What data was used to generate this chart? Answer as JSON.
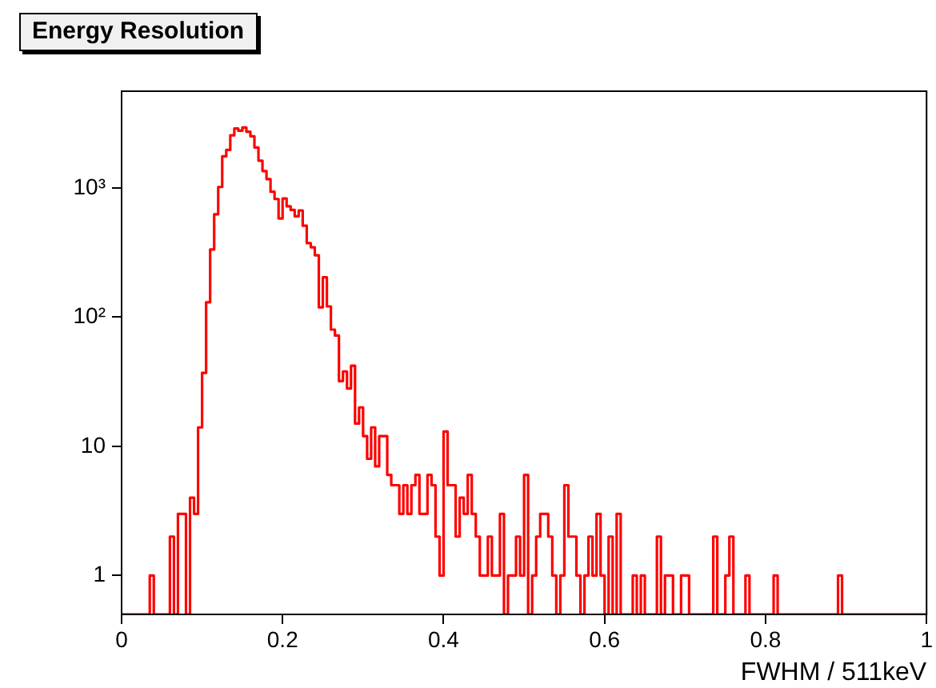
{
  "chart_data": {
    "type": "histogram",
    "title": "Energy Resolution",
    "xlabel": "FWHM / 511keV",
    "color": "#ff0000",
    "bins": [
      0,
      0.005,
      0.01,
      0.015,
      0.02,
      0.025,
      0.03,
      0.035,
      0.04,
      0.045,
      0.05,
      0.055,
      0.06,
      0.065,
      0.07,
      0.075,
      0.08,
      0.085,
      0.09,
      0.095,
      0.1,
      0.105,
      0.11,
      0.115,
      0.12,
      0.125,
      0.13,
      0.135,
      0.14,
      0.145,
      0.15,
      0.155,
      0.16,
      0.165,
      0.17,
      0.175,
      0.18,
      0.185,
      0.19,
      0.195,
      0.2,
      0.205,
      0.21,
      0.215,
      0.22,
      0.225,
      0.23,
      0.235,
      0.24,
      0.245,
      0.25,
      0.255,
      0.26,
      0.265,
      0.27,
      0.275,
      0.28,
      0.285,
      0.29,
      0.295,
      0.3,
      0.305,
      0.31,
      0.315,
      0.32,
      0.325,
      0.33,
      0.335,
      0.34,
      0.345,
      0.35,
      0.355,
      0.36,
      0.365,
      0.37,
      0.375,
      0.38,
      0.385,
      0.39,
      0.395,
      0.4,
      0.405,
      0.41,
      0.415,
      0.42,
      0.425,
      0.43,
      0.435,
      0.44,
      0.445,
      0.45,
      0.455,
      0.46,
      0.465,
      0.47,
      0.475,
      0.48,
      0.485,
      0.49,
      0.495,
      0.5,
      0.505,
      0.51,
      0.515,
      0.52,
      0.525,
      0.53,
      0.535,
      0.54,
      0.545,
      0.55,
      0.555,
      0.56,
      0.565,
      0.57,
      0.575,
      0.58,
      0.585,
      0.59,
      0.595,
      0.6,
      0.605,
      0.61,
      0.615,
      0.62,
      0.625,
      0.63,
      0.635,
      0.64,
      0.645,
      0.65,
      0.655,
      0.66,
      0.665,
      0.67,
      0.675,
      0.68,
      0.685,
      0.69,
      0.695,
      0.7,
      0.705,
      0.71,
      0.715,
      0.72,
      0.725,
      0.73,
      0.735,
      0.74,
      0.745,
      0.75,
      0.755,
      0.76,
      0.765,
      0.77,
      0.775,
      0.78,
      0.785,
      0.79,
      0.795,
      0.8,
      0.805,
      0.81,
      0.815,
      0.82,
      0.825,
      0.83,
      0.835,
      0.84,
      0.845,
      0.85,
      0.855,
      0.86,
      0.865,
      0.87,
      0.875,
      0.88,
      0.885,
      0.89,
      0.895,
      0.9,
      0.905,
      0.91,
      0.915,
      0.92,
      0.925,
      0.93,
      0.935,
      0.94,
      0.945,
      0.95,
      0.955,
      0.96,
      0.965,
      0.97,
      0.975,
      0.98,
      0.985,
      0.99,
      0.995,
      1
    ],
    "values": [
      null,
      null,
      null,
      null,
      null,
      null,
      null,
      1,
      null,
      null,
      null,
      null,
      2,
      null,
      3,
      3,
      null,
      4,
      3,
      14,
      37,
      130,
      333,
      625,
      1016,
      1755,
      1965,
      2550,
      2880,
      2770,
      2935,
      2720,
      2510,
      2055,
      1625,
      1350,
      1170,
      933,
      820,
      580,
      828,
      720,
      675,
      603,
      668,
      509,
      374,
      347,
      301,
      119,
      203,
      121,
      80,
      72,
      32,
      38,
      28,
      42,
      15,
      20,
      12,
      8,
      14,
      7,
      12,
      12,
      6,
      5,
      5,
      3,
      5,
      3,
      5,
      6,
      3,
      3,
      6,
      5,
      2,
      1,
      13,
      5,
      5,
      2,
      4,
      3,
      6,
      3,
      2,
      1,
      1,
      2,
      1,
      1,
      3,
      null,
      1,
      1,
      2,
      1,
      6,
      null,
      1,
      2,
      3,
      3,
      2,
      1,
      null,
      1,
      5,
      2,
      2,
      1,
      null,
      1,
      2,
      1,
      3,
      1,
      null,
      2,
      null,
      3,
      null,
      null,
      null,
      1,
      null,
      1,
      null,
      null,
      null,
      2,
      null,
      1,
      1,
      null,
      null,
      1,
      1,
      null,
      null,
      null,
      null,
      null,
      null,
      2,
      null,
      null,
      1,
      2,
      null,
      null,
      null,
      1,
      null,
      null,
      null,
      null,
      null,
      null,
      1,
      null,
      null,
      null,
      null,
      null,
      null,
      null,
      null,
      null,
      null,
      null,
      null,
      null,
      null,
      null,
      1,
      null,
      null,
      null,
      null,
      null,
      null,
      null,
      null,
      null,
      null,
      null,
      null,
      null,
      null,
      null,
      null,
      null,
      null,
      null,
      null,
      null
    ],
    "log": "y",
    "xlim": [
      0,
      1
    ],
    "ylim": [
      0.5,
      5600
    ],
    "xticks": [
      0,
      0.2,
      0.4,
      0.6,
      0.8,
      1
    ],
    "yticks": [
      1,
      10,
      {
        "value": 100,
        "label": "10²"
      },
      {
        "value": 1000,
        "label": "10³"
      }
    ],
    "grid": false,
    "legend": false
  }
}
